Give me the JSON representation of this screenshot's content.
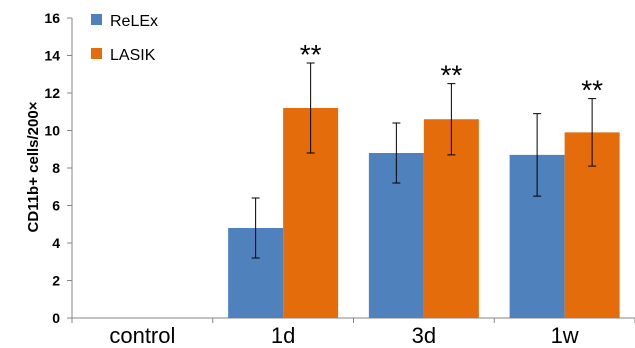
{
  "chart_data": {
    "type": "bar",
    "categories": [
      "control",
      "1d",
      "3d",
      "1w"
    ],
    "series": [
      {
        "name": "ReLEx",
        "color": "#4F81BD",
        "values": [
          null,
          4.8,
          8.8,
          8.7
        ],
        "errors": [
          null,
          1.6,
          1.6,
          2.2
        ]
      },
      {
        "name": "LASIK",
        "color": "#E46C0A",
        "values": [
          null,
          11.2,
          10.6,
          9.9
        ],
        "errors": [
          null,
          2.4,
          1.9,
          1.8
        ]
      }
    ],
    "annotations": [
      {
        "category": "1d",
        "text": "**"
      },
      {
        "category": "3d",
        "text": "**"
      },
      {
        "category": "1w",
        "text": "**"
      }
    ],
    "ylabel": "CD11b+ cells/200×",
    "xlabel": "",
    "ylim": [
      0,
      16
    ],
    "yticks": [
      0,
      2,
      4,
      6,
      8,
      10,
      12,
      14,
      16
    ],
    "grid": false,
    "legend_position": "top-left"
  }
}
